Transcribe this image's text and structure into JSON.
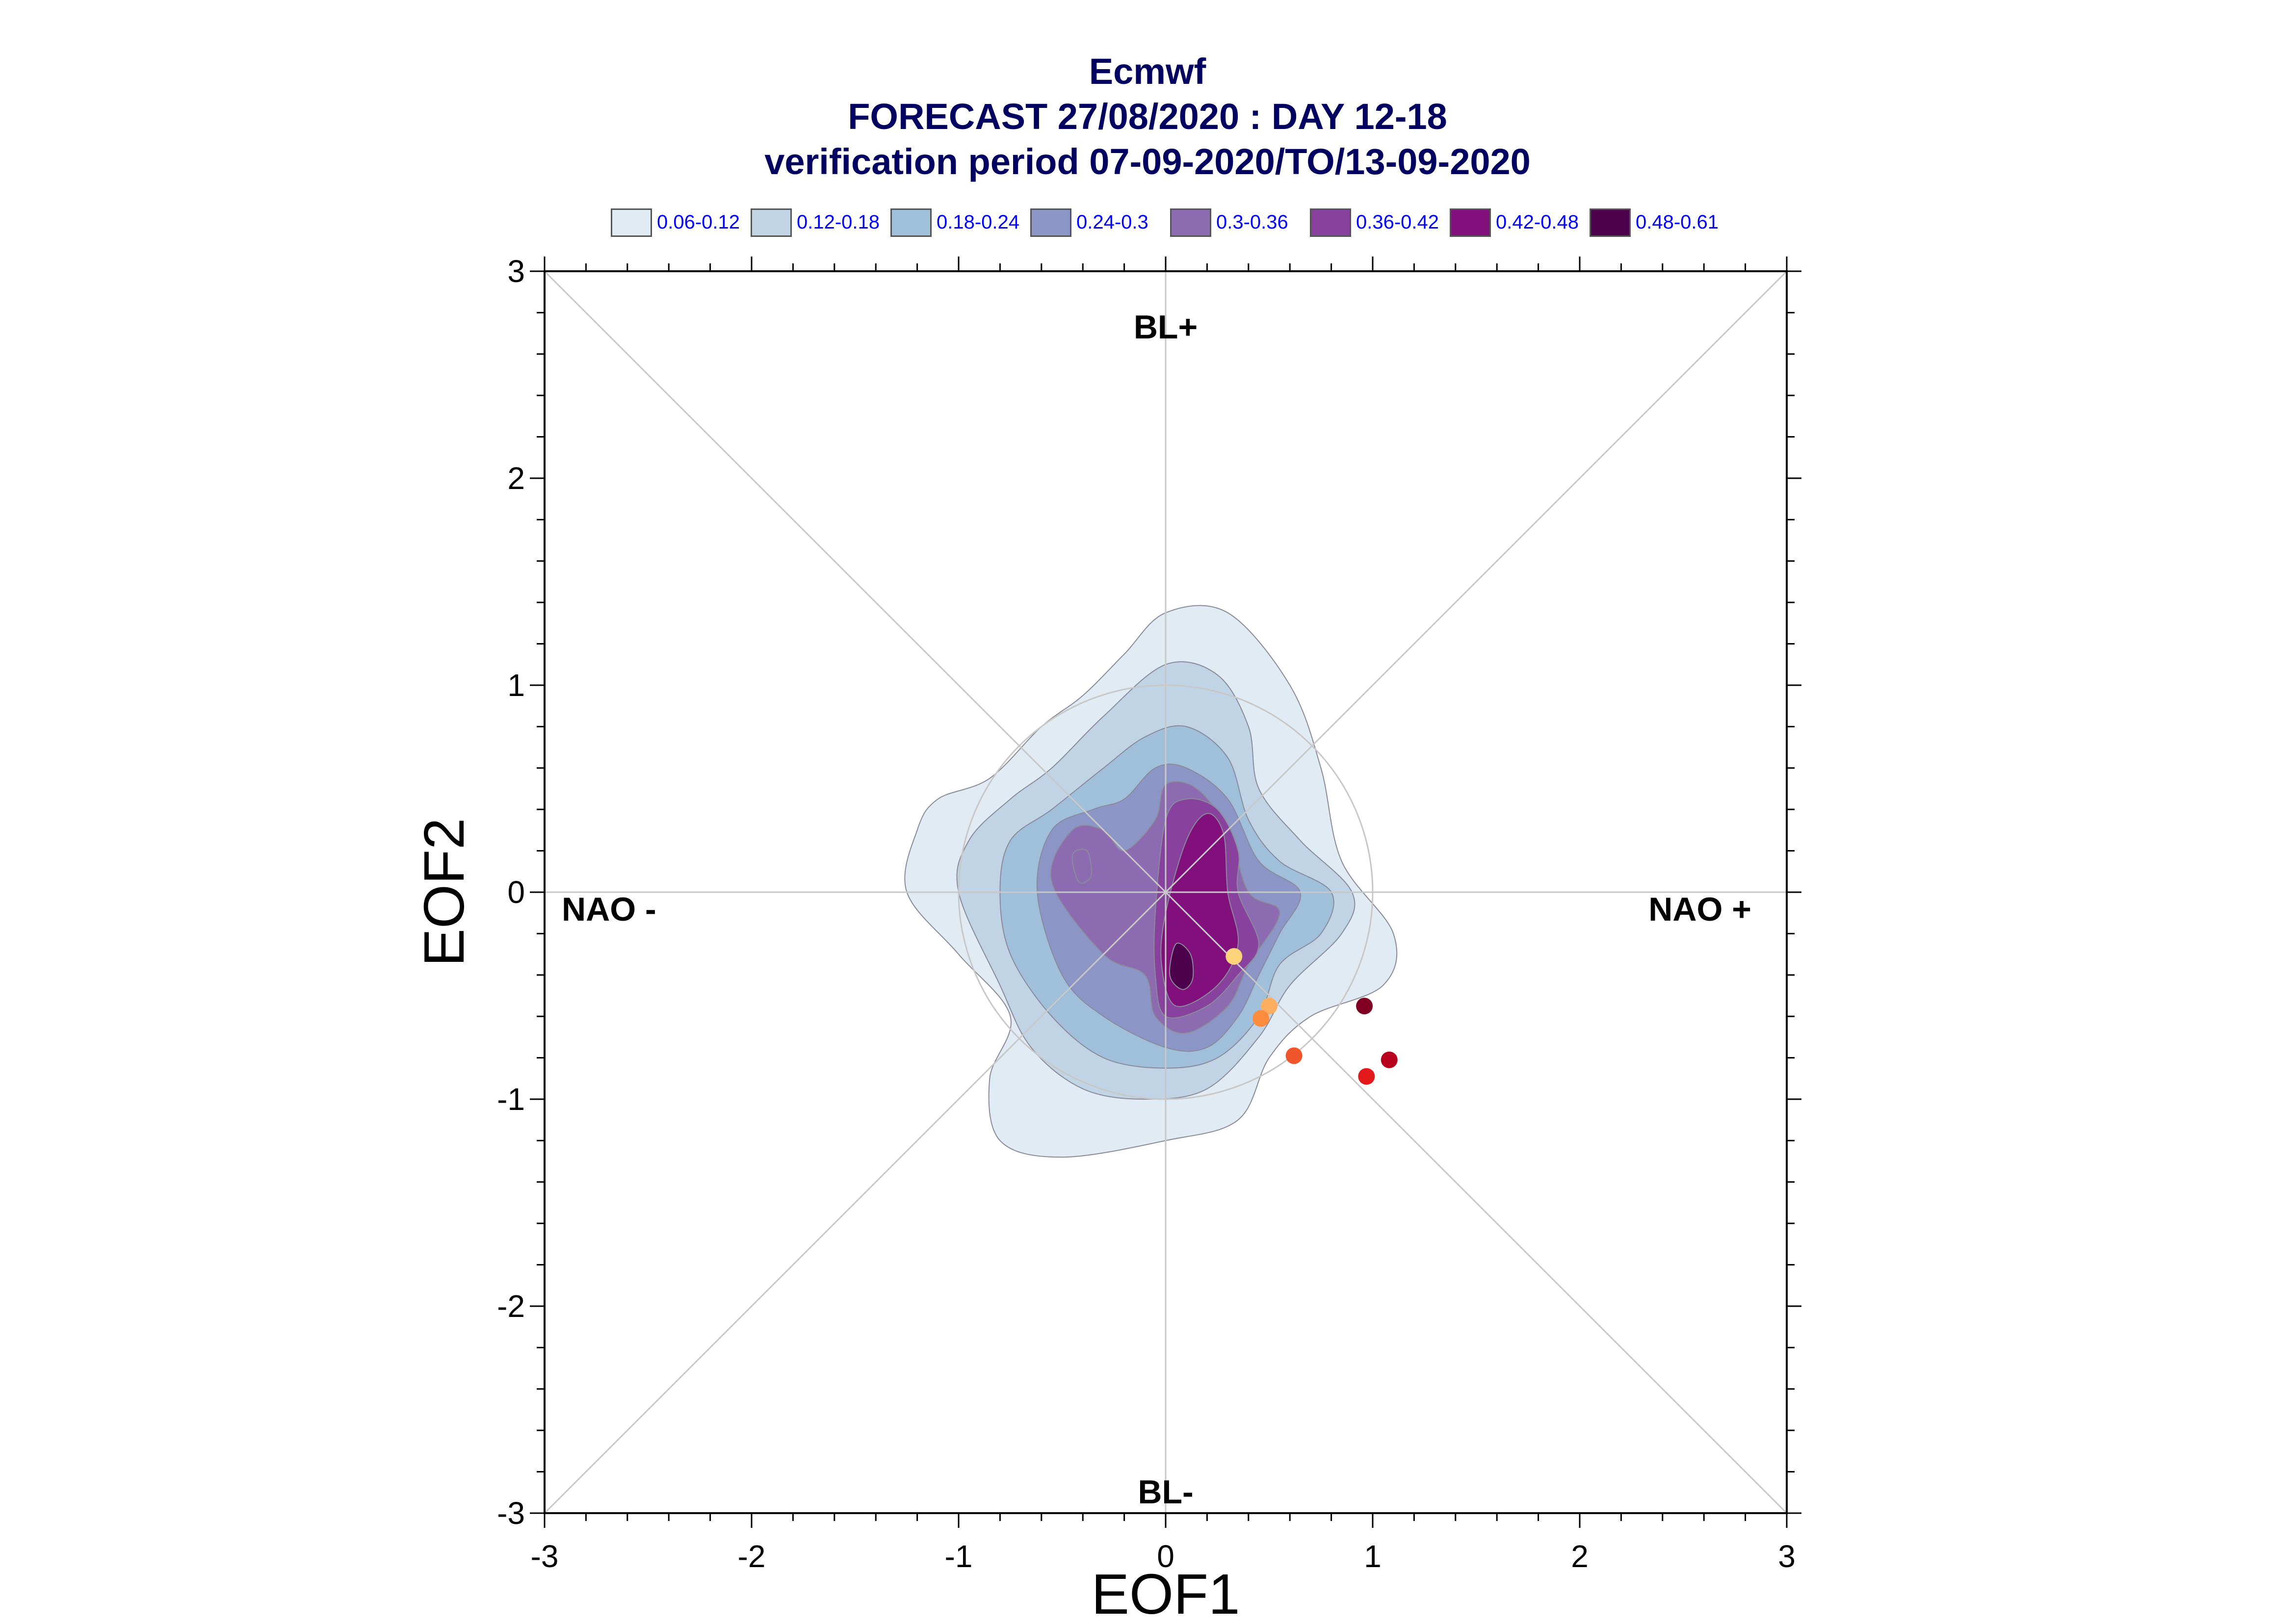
{
  "title": {
    "line1": "Ecmwf",
    "line2": "FORECAST 27/08/2020 : DAY 12-18",
    "line3": "verification period 07-09-2020/TO/13-09-2020"
  },
  "legend": [
    {
      "label": "0.06-0.12",
      "color": "#e0ebf3"
    },
    {
      "label": "0.12-0.18",
      "color": "#c0d4e5"
    },
    {
      "label": "0.18-0.24",
      "color": "#a0bfdb"
    },
    {
      "label": "0.24-0.3",
      "color": "#8c96c6"
    },
    {
      "label": "0.3-0.36",
      "color": "#8c6bb1"
    },
    {
      "label": "0.36-0.42",
      "color": "#88419d"
    },
    {
      "label": "0.42-0.48",
      "color": "#810f7c"
    },
    {
      "label": "0.48-0.61",
      "color": "#4d004b"
    }
  ],
  "chart_data": {
    "type": "scatter",
    "xlabel": "EOF1",
    "ylabel": "EOF2",
    "xlim": [
      -3,
      3
    ],
    "ylim": [
      -3,
      3
    ],
    "x_ticks": [
      "-3",
      "-2",
      "-1",
      "0",
      "1",
      "2",
      "3"
    ],
    "y_ticks": [
      "-3",
      "-2",
      "-1",
      "0",
      "1",
      "2",
      "3"
    ],
    "region_labels": {
      "top": "BL+",
      "bottom": "BL-",
      "left": "NAO -",
      "right": "NAO +"
    },
    "reference_circle_radius": 1,
    "diagonals": true,
    "density_contours": [
      {
        "level": "0.06-0.12",
        "color": "#e0ebf3",
        "points": [
          [
            -1.25,
            0.0
          ],
          [
            -1.2,
            0.3
          ],
          [
            -1.1,
            0.45
          ],
          [
            -0.85,
            0.55
          ],
          [
            -0.6,
            0.8
          ],
          [
            -0.4,
            0.95
          ],
          [
            -0.2,
            1.15
          ],
          [
            0.0,
            1.35
          ],
          [
            0.3,
            1.35
          ],
          [
            0.6,
            1.0
          ],
          [
            0.75,
            0.6
          ],
          [
            0.85,
            0.15
          ],
          [
            1.1,
            -0.2
          ],
          [
            1.05,
            -0.45
          ],
          [
            0.7,
            -0.6
          ],
          [
            0.5,
            -0.8
          ],
          [
            0.35,
            -1.1
          ],
          [
            0.0,
            -1.2
          ],
          [
            -0.5,
            -1.28
          ],
          [
            -0.8,
            -1.2
          ],
          [
            -0.85,
            -0.9
          ],
          [
            -0.75,
            -0.6
          ],
          [
            -1.0,
            -0.3
          ],
          [
            -1.25,
            0.0
          ]
        ]
      },
      {
        "level": "0.12-0.18",
        "color": "#c0d4e5",
        "points": [
          [
            -1.0,
            0.0
          ],
          [
            -0.95,
            0.25
          ],
          [
            -0.75,
            0.45
          ],
          [
            -0.55,
            0.6
          ],
          [
            -0.3,
            0.85
          ],
          [
            0.0,
            1.1
          ],
          [
            0.25,
            1.05
          ],
          [
            0.4,
            0.8
          ],
          [
            0.45,
            0.5
          ],
          [
            0.65,
            0.25
          ],
          [
            0.9,
            0.0
          ],
          [
            0.85,
            -0.2
          ],
          [
            0.6,
            -0.45
          ],
          [
            0.45,
            -0.7
          ],
          [
            0.2,
            -0.95
          ],
          [
            -0.1,
            -1.0
          ],
          [
            -0.4,
            -0.95
          ],
          [
            -0.65,
            -0.75
          ],
          [
            -0.8,
            -0.45
          ],
          [
            -1.0,
            0.0
          ]
        ]
      },
      {
        "level": "0.18-0.24",
        "color": "#a0bfdb",
        "points": [
          [
            -0.8,
            0.0
          ],
          [
            -0.75,
            0.25
          ],
          [
            -0.55,
            0.4
          ],
          [
            -0.3,
            0.6
          ],
          [
            -0.1,
            0.75
          ],
          [
            0.1,
            0.8
          ],
          [
            0.3,
            0.65
          ],
          [
            0.4,
            0.35
          ],
          [
            0.55,
            0.15
          ],
          [
            0.8,
            0.0
          ],
          [
            0.75,
            -0.2
          ],
          [
            0.55,
            -0.35
          ],
          [
            0.45,
            -0.6
          ],
          [
            0.25,
            -0.8
          ],
          [
            0.0,
            -0.85
          ],
          [
            -0.3,
            -0.8
          ],
          [
            -0.55,
            -0.6
          ],
          [
            -0.75,
            -0.3
          ],
          [
            -0.8,
            0.0
          ]
        ]
      },
      {
        "level": "0.24-0.3",
        "color": "#8c96c6",
        "points": [
          [
            -0.62,
            0.0
          ],
          [
            -0.55,
            0.3
          ],
          [
            -0.35,
            0.4
          ],
          [
            -0.2,
            0.45
          ],
          [
            -0.05,
            0.6
          ],
          [
            0.1,
            0.6
          ],
          [
            0.3,
            0.45
          ],
          [
            0.45,
            0.15
          ],
          [
            0.65,
            0.0
          ],
          [
            0.55,
            -0.2
          ],
          [
            0.45,
            -0.4
          ],
          [
            0.35,
            -0.6
          ],
          [
            0.2,
            -0.75
          ],
          [
            0.0,
            -0.75
          ],
          [
            -0.3,
            -0.6
          ],
          [
            -0.5,
            -0.4
          ],
          [
            -0.62,
            0.0
          ]
        ]
      },
      {
        "level": "0.3-0.36",
        "color": "#8c6bb1",
        "points": [
          [
            -0.55,
            0.05
          ],
          [
            -0.45,
            0.3
          ],
          [
            -0.3,
            0.3
          ],
          [
            -0.2,
            0.2
          ],
          [
            -0.05,
            0.35
          ],
          [
            0.0,
            0.52
          ],
          [
            0.15,
            0.5
          ],
          [
            0.3,
            0.3
          ],
          [
            0.4,
            0.0
          ],
          [
            0.55,
            -0.1
          ],
          [
            0.4,
            -0.35
          ],
          [
            0.3,
            -0.55
          ],
          [
            0.1,
            -0.68
          ],
          [
            -0.05,
            -0.6
          ],
          [
            -0.1,
            -0.4
          ],
          [
            -0.3,
            -0.3
          ],
          [
            -0.55,
            0.05
          ]
        ]
      },
      {
        "level": "0.36-0.42",
        "color": "#88419d",
        "points": [
          [
            0.0,
            0.35
          ],
          [
            0.1,
            0.45
          ],
          [
            0.25,
            0.4
          ],
          [
            0.35,
            0.2
          ],
          [
            0.35,
            0.0
          ],
          [
            0.45,
            -0.25
          ],
          [
            0.35,
            -0.4
          ],
          [
            0.2,
            -0.55
          ],
          [
            0.0,
            -0.6
          ],
          [
            -0.05,
            -0.4
          ],
          [
            -0.05,
            -0.1
          ],
          [
            0.0,
            0.35
          ]
        ]
      },
      {
        "level": "0.42-0.48",
        "color": "#810f7c",
        "points": [
          [
            0.1,
            0.25
          ],
          [
            0.2,
            0.38
          ],
          [
            0.28,
            0.28
          ],
          [
            0.3,
            0.0
          ],
          [
            0.35,
            -0.25
          ],
          [
            0.25,
            -0.45
          ],
          [
            0.05,
            -0.55
          ],
          [
            -0.02,
            -0.35
          ],
          [
            0.0,
            -0.1
          ],
          [
            0.1,
            0.25
          ]
        ]
      },
      {
        "level": "0.48-0.61",
        "color": "#4d004b",
        "points": [
          [
            0.05,
            -0.25
          ],
          [
            0.12,
            -0.3
          ],
          [
            0.13,
            -0.42
          ],
          [
            0.08,
            -0.47
          ],
          [
            0.02,
            -0.4
          ],
          [
            0.05,
            -0.25
          ]
        ]
      },
      {
        "level": "0.3-0.36",
        "color": "#8c6bb1",
        "points": [
          [
            -0.45,
            0.18
          ],
          [
            -0.38,
            0.2
          ],
          [
            -0.36,
            0.08
          ],
          [
            -0.42,
            0.05
          ],
          [
            -0.45,
            0.18
          ]
        ]
      }
    ],
    "points": [
      {
        "x": 0.33,
        "y": -0.31,
        "color": "#ffd37a"
      },
      {
        "x": 0.5,
        "y": -0.55,
        "color": "#fdae61"
      },
      {
        "x": 0.46,
        "y": -0.61,
        "color": "#fd8d3c"
      },
      {
        "x": 0.62,
        "y": -0.79,
        "color": "#f0562b"
      },
      {
        "x": 0.96,
        "y": -0.55,
        "color": "#7f0022"
      },
      {
        "x": 1.08,
        "y": -0.81,
        "color": "#b8001f"
      },
      {
        "x": 0.97,
        "y": -0.89,
        "color": "#e3191c"
      }
    ]
  }
}
